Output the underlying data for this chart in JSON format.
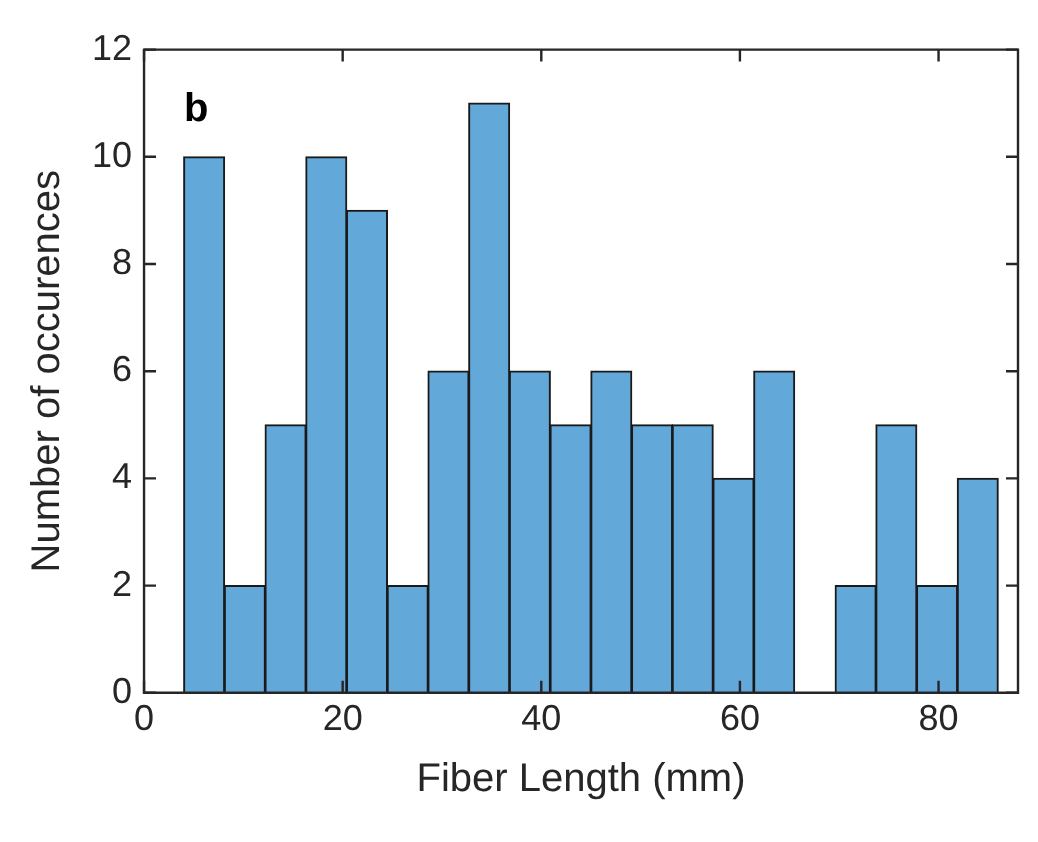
{
  "chart_data": {
    "type": "histogram",
    "xlabel": "Fiber Length (mm)",
    "ylabel": "Number of occurences",
    "bins": [
      4.0,
      8.1,
      12.2,
      16.3,
      20.4,
      24.5,
      28.6,
      32.7,
      36.8,
      40.9,
      45.0,
      49.1,
      53.2,
      57.3,
      61.4,
      65.5,
      69.6,
      73.7,
      77.8,
      81.9,
      86.0
    ],
    "values": [
      10,
      2,
      5,
      10,
      9,
      2,
      6,
      11,
      6,
      5,
      6,
      5,
      5,
      4,
      6,
      0,
      2,
      5,
      2,
      4
    ],
    "color": "#62a8d8",
    "xlim": [
      0,
      88
    ],
    "xticks": [
      0,
      20,
      40,
      60,
      80
    ],
    "ylim": [
      0,
      12
    ],
    "yticks": [
      0,
      2,
      4,
      6,
      8,
      10,
      12
    ],
    "annotations": [
      "b"
    ],
    "grid": false,
    "legend": false
  }
}
